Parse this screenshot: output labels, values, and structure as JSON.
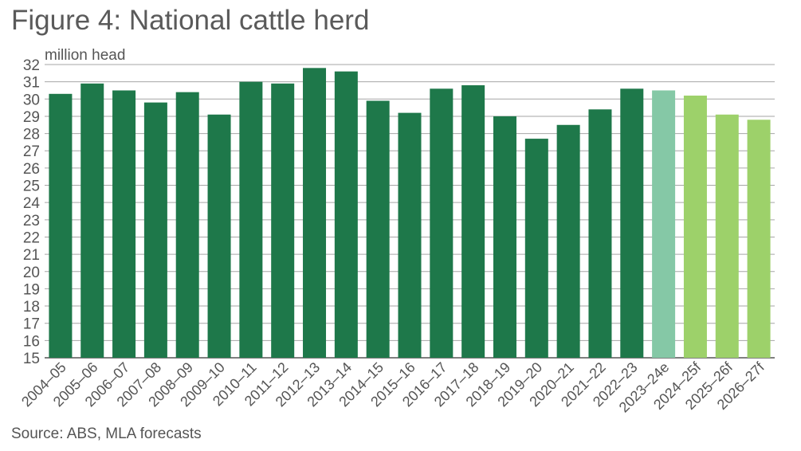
{
  "figure": {
    "title": "Figure 4: National cattle herd",
    "source": "Source: ABS, MLA forecasts"
  },
  "colors": {
    "actual": "#1e784a",
    "estimate": "#85c8a6",
    "forecast": "#9dd16a",
    "grid": "#a6a6a6",
    "axis": "#555555"
  },
  "chart_data": {
    "type": "bar",
    "title": "",
    "ylabel": "million head",
    "xlabel": "",
    "ylim": [
      15,
      32
    ],
    "yticks": [
      15,
      16,
      17,
      18,
      19,
      20,
      21,
      22,
      23,
      24,
      25,
      26,
      27,
      28,
      29,
      30,
      31,
      32
    ],
    "grid": true,
    "categories": [
      "2004–05",
      "2005–06",
      "2006–07",
      "2007–08",
      "2008–09",
      "2009–10",
      "2010–11",
      "2011–12",
      "2012–13",
      "2013–14",
      "2014–15",
      "2015–16",
      "2016–17",
      "2017–18",
      "2018–19",
      "2019–20",
      "2020–21",
      "2021–22",
      "2022–23",
      "2023–24e",
      "2024–25f",
      "2025–26f",
      "2026–27f"
    ],
    "values": [
      30.3,
      30.9,
      30.5,
      29.8,
      30.4,
      29.1,
      31.0,
      30.9,
      31.8,
      31.6,
      29.9,
      29.2,
      30.6,
      30.8,
      29.0,
      27.7,
      28.5,
      29.4,
      30.6,
      30.5,
      30.2,
      29.1,
      28.8
    ],
    "bar_types": [
      "actual",
      "actual",
      "actual",
      "actual",
      "actual",
      "actual",
      "actual",
      "actual",
      "actual",
      "actual",
      "actual",
      "actual",
      "actual",
      "actual",
      "actual",
      "actual",
      "actual",
      "actual",
      "actual",
      "estimate",
      "forecast",
      "forecast",
      "forecast"
    ]
  }
}
